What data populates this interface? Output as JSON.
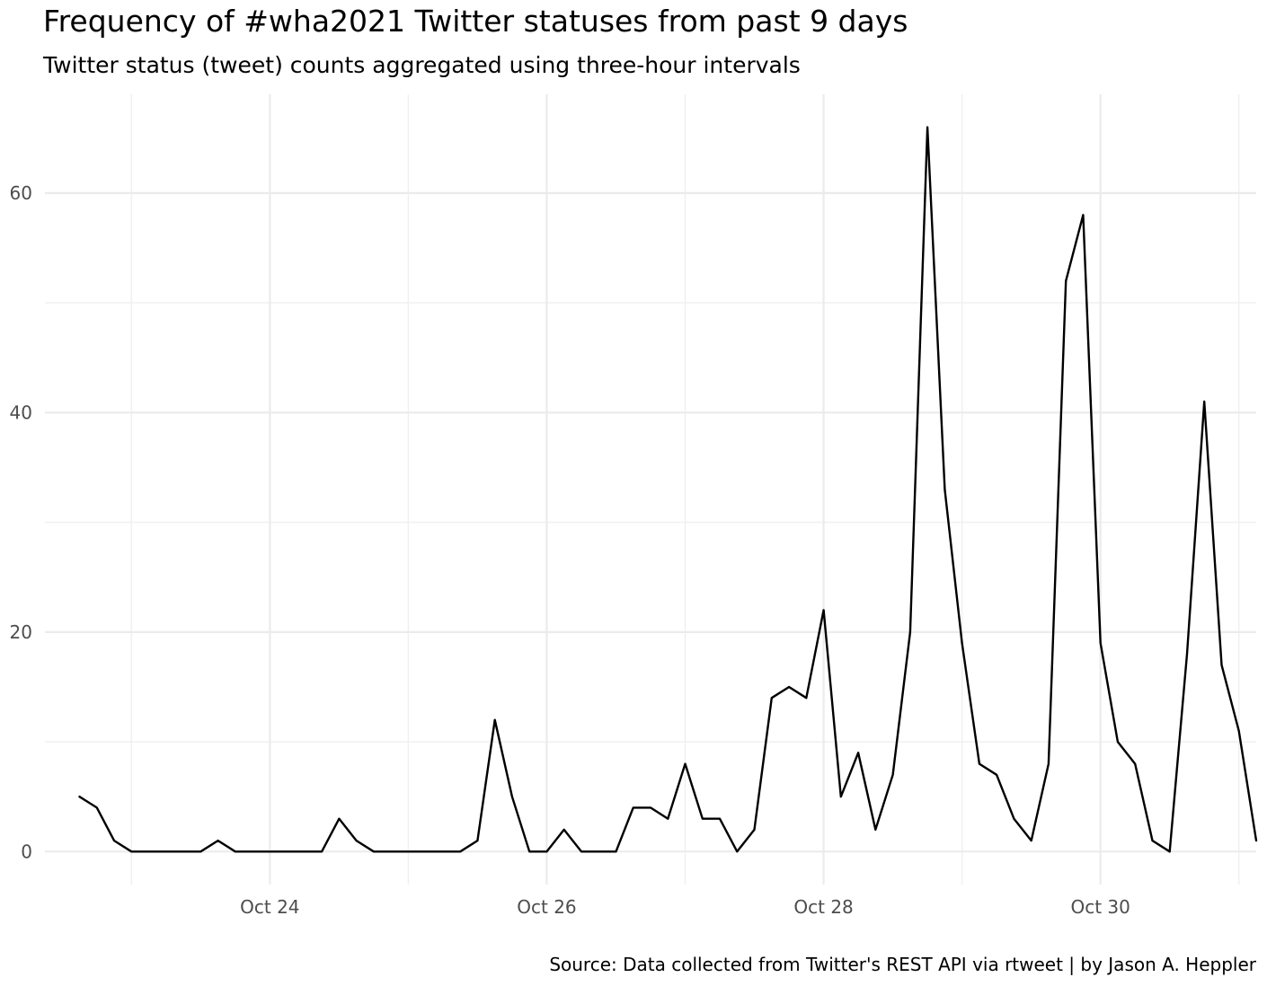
{
  "title": "Frequency of #wha2021 Twitter statuses from past 9 days",
  "subtitle": "Twitter status (tweet) counts aggregated using three-hour intervals",
  "caption": "Source: Data collected from Twitter's REST API via rtweet | by Jason A. Heppler",
  "chart_data": {
    "type": "line",
    "title": "Frequency of #wha2021 Twitter statuses from past 9 days",
    "subtitle": "Twitter status (tweet) counts aggregated using three-hour intervals",
    "xlabel": "",
    "ylabel": "",
    "xlim": [
      "2021-10-22T09:00",
      "2021-10-31T03:00"
    ],
    "ylim": [
      -3,
      69
    ],
    "x_ticks": [
      {
        "x": "2021-10-24T00:00",
        "label": "Oct 24"
      },
      {
        "x": "2021-10-26T00:00",
        "label": "Oct 26"
      },
      {
        "x": "2021-10-28T00:00",
        "label": "Oct 28"
      },
      {
        "x": "2021-10-30T00:00",
        "label": "Oct 30"
      }
    ],
    "y_ticks": [
      0,
      20,
      40,
      60
    ],
    "grid": true,
    "series": [
      {
        "color": "#000000",
        "interval_hours": 3,
        "x_start": "2021-10-22T15:00",
        "values": [
          5,
          4,
          1,
          0,
          0,
          0,
          0,
          0,
          1,
          0,
          0,
          0,
          0,
          0,
          0,
          3,
          1,
          0,
          0,
          0,
          0,
          0,
          0,
          1,
          12,
          5,
          0,
          0,
          2,
          0,
          0,
          0,
          4,
          4,
          3,
          8,
          3,
          3,
          0,
          2,
          14,
          15,
          14,
          22,
          5,
          9,
          2,
          7,
          20,
          66,
          33,
          19,
          8,
          7,
          3,
          1,
          8,
          52,
          58,
          19,
          10,
          8,
          1,
          0,
          18,
          41,
          17,
          11,
          1
        ]
      }
    ]
  }
}
